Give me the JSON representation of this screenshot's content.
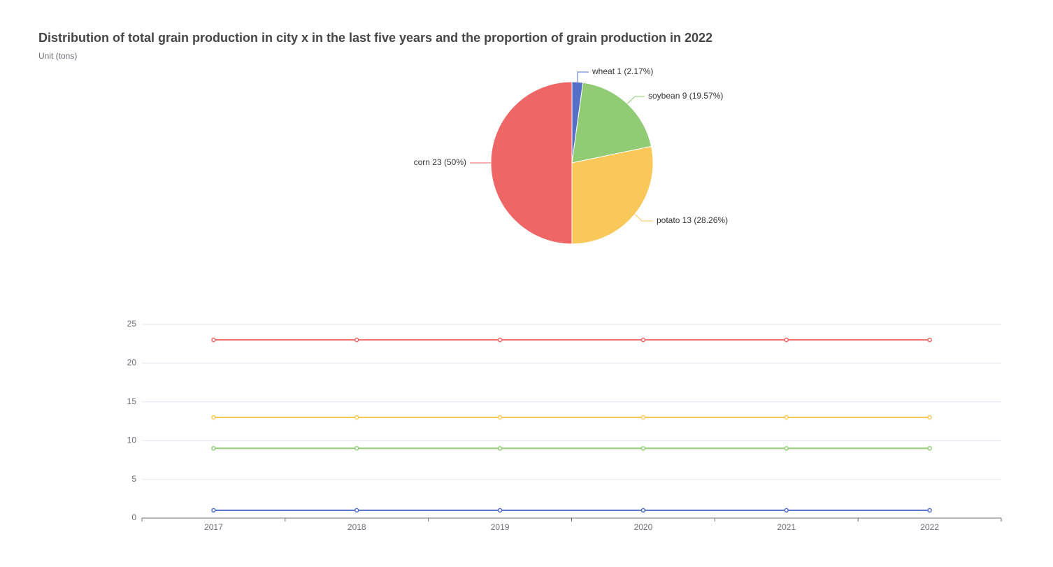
{
  "header": {
    "title": "Distribution of total grain production in city x in the last five years and the proportion of grain production in 2022",
    "subtitle": "Unit (tons)"
  },
  "chart_data": [
    {
      "type": "pie",
      "title": "",
      "slices": [
        {
          "name": "wheat",
          "value": 1,
          "percent": "2.17%",
          "color": "#5470c6",
          "label": "wheat 1 (2.17%)"
        },
        {
          "name": "soybean",
          "value": 9,
          "percent": "19.57%",
          "color": "#91cc75",
          "label": "soybean 9 (19.57%)"
        },
        {
          "name": "potato",
          "value": 13,
          "percent": "28.26%",
          "color": "#fac858",
          "label": "potato 13 (28.26%)"
        },
        {
          "name": "corn",
          "value": 23,
          "percent": "50%",
          "color": "#ee6666",
          "label": "corn 23 (50%)"
        }
      ]
    },
    {
      "type": "line",
      "x": [
        "2017",
        "2018",
        "2019",
        "2020",
        "2021",
        "2022"
      ],
      "ylim": [
        0,
        25
      ],
      "yticks": [
        "0",
        "5",
        "10",
        "15",
        "20",
        "25"
      ],
      "grid": true,
      "legend": "none",
      "series": [
        {
          "values": [
            23,
            23,
            23,
            23,
            23,
            23
          ],
          "color": "#ee6666"
        },
        {
          "values": [
            13,
            13,
            13,
            13,
            13,
            13
          ],
          "color": "#fac858"
        },
        {
          "values": [
            9,
            9,
            9,
            9,
            9,
            9
          ],
          "color": "#91cc75"
        },
        {
          "values": [
            1,
            1,
            1,
            1,
            1,
            1
          ],
          "color": "#5470c6"
        }
      ]
    }
  ]
}
